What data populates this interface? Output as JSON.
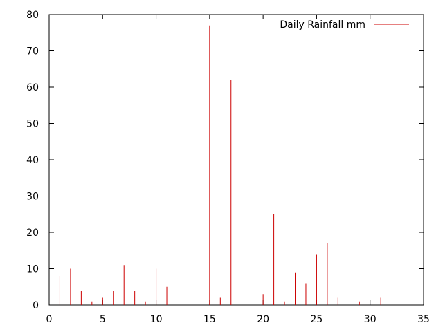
{
  "chart_data": {
    "type": "bar",
    "style": "impulses",
    "title": "",
    "xlabel": "",
    "ylabel": "",
    "xlim": [
      0,
      35
    ],
    "ylim": [
      0,
      80
    ],
    "xticks": [
      0,
      5,
      10,
      15,
      20,
      25,
      30,
      35
    ],
    "yticks": [
      0,
      10,
      20,
      30,
      40,
      50,
      60,
      70,
      80
    ],
    "grid": false,
    "legend_position": "top-right",
    "series": [
      {
        "name": "Daily Rainfall mm",
        "color": "#cc0000",
        "x": [
          1,
          2,
          3,
          4,
          5,
          6,
          7,
          8,
          9,
          10,
          11,
          15,
          16,
          17,
          20,
          21,
          22,
          23,
          24,
          25,
          26,
          27,
          29,
          31
        ],
        "y": [
          8,
          10,
          4,
          1,
          2,
          4,
          11,
          4,
          1,
          10,
          5,
          77,
          2,
          62,
          3,
          25,
          1,
          9,
          6,
          14,
          17,
          2,
          1,
          2
        ]
      }
    ]
  }
}
